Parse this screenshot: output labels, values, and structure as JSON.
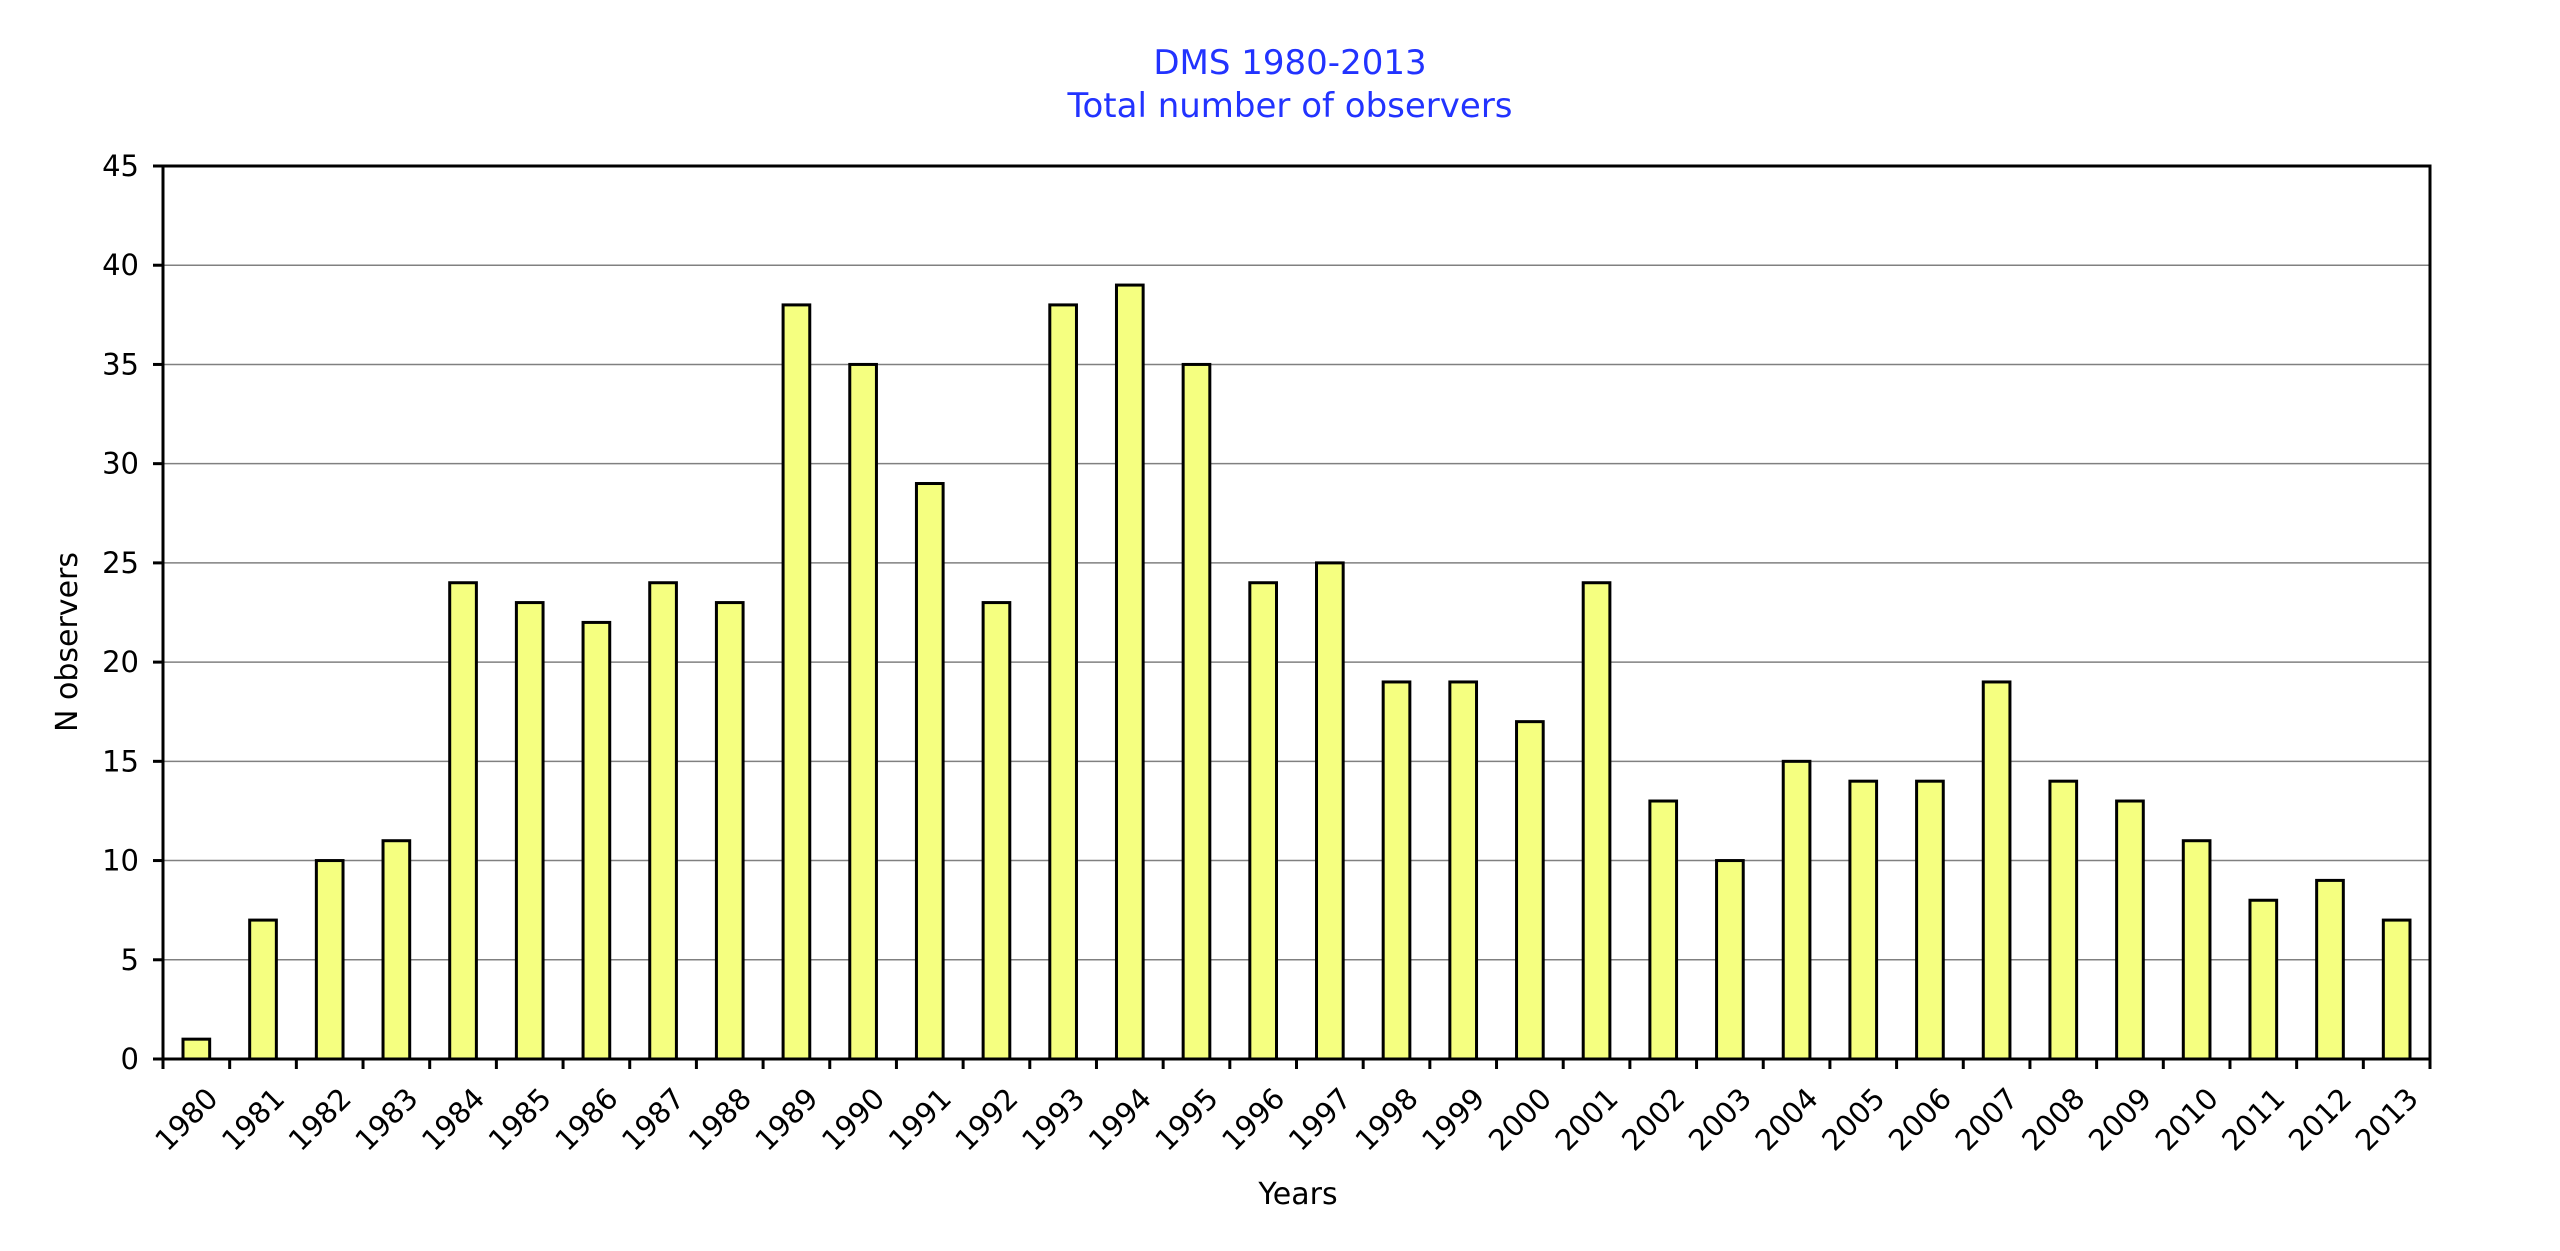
{
  "chart_data": {
    "type": "bar",
    "title": "DMS 1980-2013",
    "subtitle": "Total number of observers",
    "xlabel": "Years",
    "ylabel": "N observers",
    "ylim": [
      0,
      45
    ],
    "ytick_step": 5,
    "grid": true,
    "legend": "none",
    "bar_color": "#f5ff80",
    "title_color": "#2233ff",
    "categories": [
      "1980",
      "1981",
      "1982",
      "1983",
      "1984",
      "1985",
      "1986",
      "1987",
      "1988",
      "1989",
      "1990",
      "1991",
      "1992",
      "1993",
      "1994",
      "1995",
      "1996",
      "1997",
      "1998",
      "1999",
      "2000",
      "2001",
      "2002",
      "2003",
      "2004",
      "2005",
      "2006",
      "2007",
      "2008",
      "2009",
      "2010",
      "2011",
      "2012",
      "2013"
    ],
    "values": [
      1,
      7,
      10,
      11,
      24,
      23,
      22,
      24,
      23,
      38,
      35,
      29,
      23,
      38,
      39,
      35,
      24,
      25,
      19,
      19,
      17,
      24,
      13,
      10,
      15,
      14,
      14,
      19,
      14,
      13,
      11,
      8,
      9,
      7
    ]
  }
}
